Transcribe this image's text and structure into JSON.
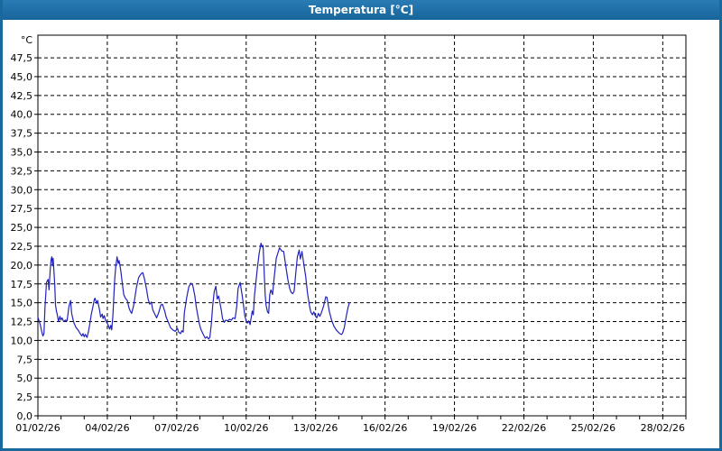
{
  "window": {
    "title": "Temperatura [°C]"
  },
  "colors": {
    "titlebar": "#19699e",
    "window_border": "#19699e",
    "plot_background": "#ffffff",
    "grid": "#000000",
    "axis": "#000000",
    "text": "#000000",
    "series_line": "#2222bb"
  },
  "chart_data": {
    "type": "line",
    "title": "Temperatura [°C]",
    "unit_label": "°C",
    "legend": "none",
    "grid": "dashed",
    "x_axis": {
      "start_date": "01/02/26",
      "range_days": [
        0,
        28
      ],
      "tick_interval_days": 1,
      "label_interval_days": 3,
      "labels": [
        {
          "day": 0,
          "text": "01/02/26"
        },
        {
          "day": 3,
          "text": "04/02/26"
        },
        {
          "day": 6,
          "text": "07/02/26"
        },
        {
          "day": 9,
          "text": "10/02/26"
        },
        {
          "day": 12,
          "text": "13/02/26"
        },
        {
          "day": 15,
          "text": "16/02/26"
        },
        {
          "day": 18,
          "text": "19/02/26"
        },
        {
          "day": 21,
          "text": "22/02/26"
        },
        {
          "day": 24,
          "text": "25/02/26"
        },
        {
          "day": 27,
          "text": "28/02/26"
        }
      ]
    },
    "y_axis": {
      "range": [
        0,
        50.5
      ],
      "grid_step": 2.5,
      "labels": [
        {
          "value": 0,
          "text": "0,0"
        },
        {
          "value": 2.5,
          "text": "2,5"
        },
        {
          "value": 5,
          "text": "5,0"
        },
        {
          "value": 7.5,
          "text": "7,5"
        },
        {
          "value": 10,
          "text": "10,0"
        },
        {
          "value": 12.5,
          "text": "12,5"
        },
        {
          "value": 15,
          "text": "15,0"
        },
        {
          "value": 17.5,
          "text": "17,5"
        },
        {
          "value": 20,
          "text": "20,0"
        },
        {
          "value": 22.5,
          "text": "22,5"
        },
        {
          "value": 25,
          "text": "25,0"
        },
        {
          "value": 27.5,
          "text": "27,5"
        },
        {
          "value": 30,
          "text": "30,0"
        },
        {
          "value": 32.5,
          "text": "32,5"
        },
        {
          "value": 35,
          "text": "35,0"
        },
        {
          "value": 37.5,
          "text": "37,5"
        },
        {
          "value": 40,
          "text": "40,0"
        },
        {
          "value": 42.5,
          "text": "42,5"
        },
        {
          "value": 45,
          "text": "45,0"
        },
        {
          "value": 47.5,
          "text": "47,5"
        }
      ]
    },
    "series": [
      {
        "name": "Temperatura",
        "color": "#2222bb",
        "points_format": "[days_since_01_02_26, temperature_C]",
        "points": [
          [
            0.0,
            13.1
          ],
          [
            0.1,
            12.1
          ],
          [
            0.18,
            11.0
          ],
          [
            0.22,
            10.6
          ],
          [
            0.26,
            10.9
          ],
          [
            0.31,
            14.5
          ],
          [
            0.37,
            17.7
          ],
          [
            0.44,
            18.1
          ],
          [
            0.48,
            16.7
          ],
          [
            0.53,
            19.3
          ],
          [
            0.57,
            20.7
          ],
          [
            0.6,
            21.1
          ],
          [
            0.64,
            19.9
          ],
          [
            0.66,
            20.9
          ],
          [
            0.69,
            19.3
          ],
          [
            0.73,
            17.3
          ],
          [
            0.76,
            14.7
          ],
          [
            0.8,
            13.9
          ],
          [
            0.84,
            13.4
          ],
          [
            0.89,
            12.5
          ],
          [
            0.95,
            13.2
          ],
          [
            0.99,
            12.7
          ],
          [
            1.04,
            13.0
          ],
          [
            1.11,
            12.5
          ],
          [
            1.19,
            12.7
          ],
          [
            1.26,
            12.6
          ],
          [
            1.3,
            13.5
          ],
          [
            1.34,
            14.5
          ],
          [
            1.41,
            15.3
          ],
          [
            1.46,
            13.6
          ],
          [
            1.51,
            12.9
          ],
          [
            1.56,
            12.3
          ],
          [
            1.65,
            11.7
          ],
          [
            1.73,
            11.4
          ],
          [
            1.81,
            11.0
          ],
          [
            1.9,
            10.6
          ],
          [
            1.95,
            10.9
          ],
          [
            2.0,
            10.5
          ],
          [
            2.05,
            10.8
          ],
          [
            2.12,
            10.4
          ],
          [
            2.18,
            11.1
          ],
          [
            2.24,
            12.1
          ],
          [
            2.31,
            13.5
          ],
          [
            2.38,
            14.5
          ],
          [
            2.44,
            15.5
          ],
          [
            2.47,
            15.6
          ],
          [
            2.54,
            14.9
          ],
          [
            2.58,
            15.3
          ],
          [
            2.67,
            13.9
          ],
          [
            2.71,
            13.1
          ],
          [
            2.78,
            13.5
          ],
          [
            2.81,
            12.9
          ],
          [
            2.87,
            13.3
          ],
          [
            2.93,
            12.6
          ],
          [
            3.03,
            12.1
          ],
          [
            3.1,
            11.5
          ],
          [
            3.15,
            12.0
          ],
          [
            3.19,
            11.4
          ],
          [
            3.24,
            13.3
          ],
          [
            3.28,
            15.7
          ],
          [
            3.32,
            18.1
          ],
          [
            3.36,
            19.7
          ],
          [
            3.42,
            21.1
          ],
          [
            3.47,
            20.2
          ],
          [
            3.51,
            20.6
          ],
          [
            3.58,
            19.3
          ],
          [
            3.65,
            17.5
          ],
          [
            3.71,
            16.1
          ],
          [
            3.78,
            15.6
          ],
          [
            3.86,
            15.3
          ],
          [
            3.94,
            14.3
          ],
          [
            3.99,
            13.9
          ],
          [
            4.05,
            13.6
          ],
          [
            4.14,
            14.7
          ],
          [
            4.25,
            16.9
          ],
          [
            4.35,
            18.3
          ],
          [
            4.4,
            18.6
          ],
          [
            4.48,
            18.9
          ],
          [
            4.53,
            19.0
          ],
          [
            4.61,
            18.1
          ],
          [
            4.7,
            16.7
          ],
          [
            4.76,
            15.5
          ],
          [
            4.83,
            14.8
          ],
          [
            4.9,
            15.1
          ],
          [
            4.96,
            14.1
          ],
          [
            5.05,
            13.5
          ],
          [
            5.13,
            13.0
          ],
          [
            5.22,
            13.7
          ],
          [
            5.31,
            14.7
          ],
          [
            5.38,
            14.8
          ],
          [
            5.48,
            13.9
          ],
          [
            5.54,
            13.1
          ],
          [
            5.64,
            12.4
          ],
          [
            5.73,
            11.7
          ],
          [
            5.83,
            11.4
          ],
          [
            5.93,
            11.2
          ],
          [
            6.03,
            11.6
          ],
          [
            6.08,
            11.1
          ],
          [
            6.16,
            10.9
          ],
          [
            6.22,
            11.3
          ],
          [
            6.28,
            11.1
          ],
          [
            6.33,
            13.7
          ],
          [
            6.43,
            15.7
          ],
          [
            6.52,
            17.1
          ],
          [
            6.61,
            17.6
          ],
          [
            6.69,
            17.3
          ],
          [
            6.78,
            15.9
          ],
          [
            6.84,
            14.5
          ],
          [
            6.91,
            13.3
          ],
          [
            6.97,
            12.3
          ],
          [
            7.04,
            11.5
          ],
          [
            7.13,
            10.9
          ],
          [
            7.23,
            10.3
          ],
          [
            7.31,
            10.5
          ],
          [
            7.37,
            10.2
          ],
          [
            7.43,
            10.4
          ],
          [
            7.49,
            12.1
          ],
          [
            7.55,
            14.5
          ],
          [
            7.62,
            16.5
          ],
          [
            7.69,
            17.2
          ],
          [
            7.75,
            15.5
          ],
          [
            7.81,
            15.9
          ],
          [
            7.92,
            14.1
          ],
          [
            7.98,
            12.9
          ],
          [
            8.05,
            12.4
          ],
          [
            8.12,
            12.7
          ],
          [
            8.2,
            12.6
          ],
          [
            8.28,
            12.8
          ],
          [
            8.36,
            12.7
          ],
          [
            8.43,
            13.0
          ],
          [
            8.52,
            12.9
          ],
          [
            8.59,
            14.5
          ],
          [
            8.65,
            16.9
          ],
          [
            8.74,
            17.7
          ],
          [
            8.82,
            16.1
          ],
          [
            8.89,
            14.5
          ],
          [
            8.94,
            13.3
          ],
          [
            9.0,
            12.6
          ],
          [
            9.05,
            12.3
          ],
          [
            9.11,
            12.6
          ],
          [
            9.17,
            12.1
          ],
          [
            9.26,
            13.9
          ],
          [
            9.31,
            13.4
          ],
          [
            9.36,
            16.0
          ],
          [
            9.48,
            19.5
          ],
          [
            9.56,
            21.5
          ],
          [
            9.64,
            22.9
          ],
          [
            9.69,
            22.4
          ],
          [
            9.73,
            22.6
          ],
          [
            9.78,
            18.9
          ],
          [
            9.82,
            16.1
          ],
          [
            9.86,
            14.7
          ],
          [
            9.92,
            13.8
          ],
          [
            9.97,
            13.6
          ],
          [
            10.02,
            16.1
          ],
          [
            10.07,
            16.7
          ],
          [
            10.14,
            16.1
          ],
          [
            10.2,
            18.1
          ],
          [
            10.3,
            20.9
          ],
          [
            10.4,
            21.9
          ],
          [
            10.44,
            22.3
          ],
          [
            10.53,
            21.9
          ],
          [
            10.62,
            21.8
          ],
          [
            10.72,
            19.7
          ],
          [
            10.8,
            18.1
          ],
          [
            10.88,
            16.9
          ],
          [
            10.94,
            16.4
          ],
          [
            11.01,
            16.2
          ],
          [
            11.07,
            16.5
          ],
          [
            11.14,
            18.9
          ],
          [
            11.21,
            21.1
          ],
          [
            11.29,
            22.0
          ],
          [
            11.34,
            20.8
          ],
          [
            11.41,
            21.8
          ],
          [
            11.5,
            19.9
          ],
          [
            11.57,
            18.5
          ],
          [
            11.65,
            16.3
          ],
          [
            11.73,
            14.7
          ],
          [
            11.79,
            13.8
          ],
          [
            11.86,
            13.4
          ],
          [
            11.92,
            13.8
          ],
          [
            11.98,
            13.3
          ],
          [
            12.05,
            13.0
          ],
          [
            12.12,
            13.6
          ],
          [
            12.18,
            13.2
          ],
          [
            12.23,
            13.5
          ],
          [
            12.34,
            14.5
          ],
          [
            12.44,
            15.8
          ],
          [
            12.49,
            15.7
          ],
          [
            12.59,
            13.9
          ],
          [
            12.69,
            12.7
          ],
          [
            12.79,
            11.9
          ],
          [
            12.89,
            11.4
          ],
          [
            12.98,
            11.1
          ],
          [
            13.05,
            10.9
          ],
          [
            13.12,
            10.8
          ],
          [
            13.17,
            11.0
          ],
          [
            13.24,
            11.7
          ],
          [
            13.33,
            13.3
          ],
          [
            13.41,
            14.5
          ],
          [
            13.46,
            15.0
          ]
        ]
      }
    ]
  }
}
